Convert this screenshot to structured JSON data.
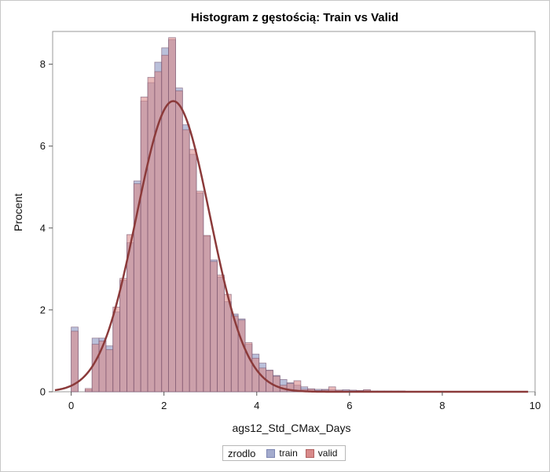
{
  "chart_data": {
    "type": "bar",
    "title": "Histogram z gęstością: Train vs Valid",
    "xlabel": "ags12_Std_CMax_Days",
    "ylabel": "Procent",
    "xlim": [
      -0.4,
      10.0
    ],
    "ylim": [
      0,
      8.8
    ],
    "xticks": [
      0,
      2,
      4,
      6,
      8,
      10
    ],
    "yticks": [
      0,
      2,
      4,
      6,
      8
    ],
    "bin_width": 0.15,
    "legend": {
      "title": "zrodlo",
      "position": "bottom-center"
    },
    "colors": {
      "train": "#a3abcd",
      "valid": "#d88a8a",
      "overlap": "#c07f8c",
      "bar_edge": "#7a5a75",
      "density": "#8b3a3a"
    },
    "series": [
      {
        "name": "train",
        "x": [
          0.075,
          0.225,
          0.375,
          0.525,
          0.675,
          0.825,
          0.975,
          1.125,
          1.275,
          1.425,
          1.575,
          1.725,
          1.875,
          2.025,
          2.175,
          2.325,
          2.475,
          2.625,
          2.775,
          2.925,
          3.075,
          3.225,
          3.375,
          3.525,
          3.675,
          3.825,
          3.975,
          4.125,
          4.275,
          4.425,
          4.575,
          4.725,
          4.875,
          5.025,
          5.175,
          5.325,
          5.475,
          5.625,
          5.775,
          5.925,
          6.075,
          6.225,
          6.375,
          6.525,
          6.675,
          6.825,
          6.975,
          7.125,
          7.275
        ],
        "values": [
          1.58,
          0.0,
          0.05,
          1.31,
          1.31,
          1.12,
          1.95,
          2.72,
          3.64,
          5.15,
          7.1,
          7.55,
          8.05,
          8.4,
          8.6,
          7.42,
          6.52,
          5.8,
          4.85,
          3.8,
          3.22,
          2.8,
          2.2,
          1.9,
          1.78,
          1.16,
          0.92,
          0.7,
          0.53,
          0.4,
          0.3,
          0.22,
          0.16,
          0.12,
          0.07,
          0.06,
          0.06,
          0.05,
          0.04,
          0.05,
          0.04,
          0.03,
          0.04,
          0.02,
          0.02,
          0.02,
          0.01,
          0.02,
          0.01
        ]
      },
      {
        "name": "valid",
        "x": [
          0.075,
          0.225,
          0.375,
          0.525,
          0.675,
          0.825,
          0.975,
          1.125,
          1.275,
          1.425,
          1.575,
          1.725,
          1.875,
          2.025,
          2.175,
          2.325,
          2.475,
          2.625,
          2.775,
          2.925,
          3.075,
          3.225,
          3.375,
          3.525,
          3.675,
          3.825,
          3.975,
          4.125,
          4.275,
          4.425,
          4.575,
          4.725,
          4.875,
          5.025,
          5.175,
          5.325,
          5.475,
          5.625,
          5.775,
          5.925,
          6.075,
          6.225,
          6.375,
          6.525,
          6.675,
          6.825,
          6.975,
          7.125,
          7.275
        ],
        "values": [
          1.48,
          0.0,
          0.08,
          1.16,
          1.24,
          1.03,
          2.07,
          2.77,
          3.84,
          5.08,
          7.2,
          7.68,
          7.82,
          8.22,
          8.65,
          7.35,
          6.4,
          5.92,
          4.9,
          3.82,
          3.18,
          2.85,
          2.38,
          1.85,
          1.75,
          1.2,
          0.82,
          0.58,
          0.52,
          0.38,
          0.16,
          0.2,
          0.27,
          0.06,
          0.07,
          0.03,
          0.04,
          0.12,
          0.04,
          0.02,
          0.02,
          0.03,
          0.05,
          0.01,
          0.01,
          0.01,
          0.02,
          0.01,
          0.01
        ]
      }
    ],
    "density": {
      "name": "density",
      "type": "normal",
      "mean": 2.2,
      "sd": 0.79,
      "peak": 7.1
    }
  }
}
